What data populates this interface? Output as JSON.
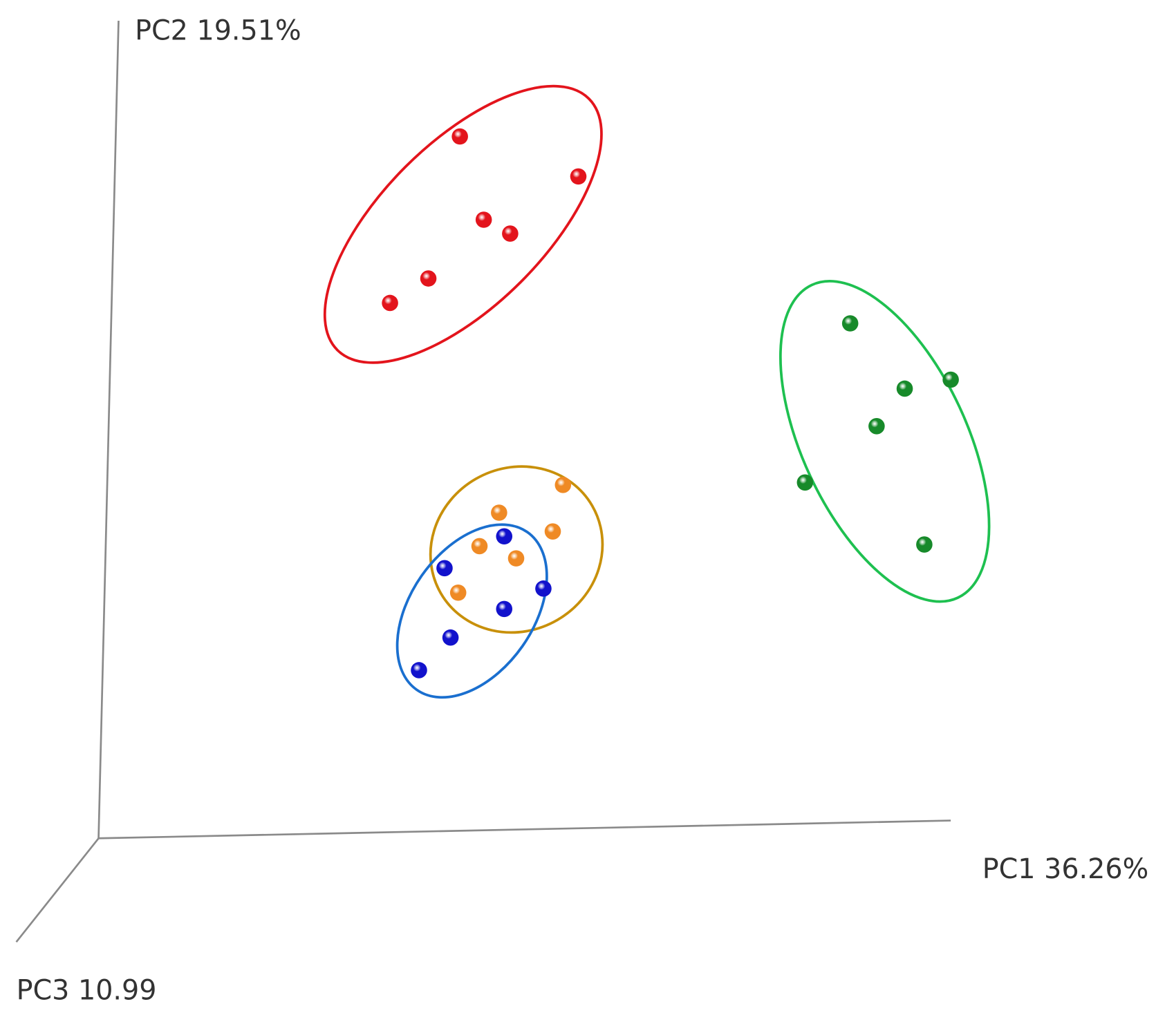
{
  "chart_data": {
    "type": "scatter",
    "x_label": "PC1 36.26%",
    "y_label": "PC2 19.51%",
    "z_label": "PC3 10.99",
    "xlim": [
      0,
      100
    ],
    "ylim": [
      0,
      100
    ],
    "series": [
      {
        "color": "#e3141c",
        "x": [
          42.4,
          56.3,
          45.2,
          48.3,
          38.7,
          34.2
        ],
        "values": [
          86.0,
          81.1,
          75.8,
          74.1,
          68.6,
          65.6
        ]
      },
      {
        "color": "#178a2a",
        "x": [
          88.2,
          94.6,
          100,
          91.3,
          82.9,
          96.9
        ],
        "values": [
          63.1,
          55.1,
          56.2,
          50.5,
          43.6,
          36.0
        ]
      },
      {
        "color": "#ef8a25",
        "x": [
          54.5,
          47.0,
          53.3,
          44.7,
          49.0,
          42.2
        ],
        "values": [
          43.3,
          39.9,
          37.6,
          35.8,
          34.3,
          30.1
        ]
      },
      {
        "color": "#1212cc",
        "x": [
          47.6,
          40.6,
          52.2,
          47.6,
          41.3,
          37.6
        ],
        "values": [
          37.0,
          33.1,
          30.6,
          28.1,
          24.6,
          20.6
        ]
      }
    ]
  }
}
